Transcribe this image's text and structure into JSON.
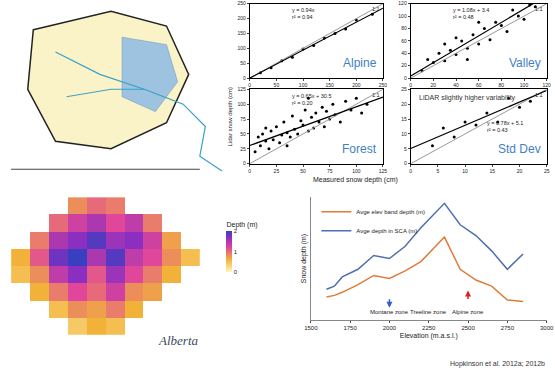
{
  "figure": {
    "y_label": "Lidar snow depth (cm)",
    "x_label": "Measured snow depth (cm)",
    "citation": "Hopkinson et al. 2012a; 2012b",
    "logo": "Alberta"
  },
  "chart_data": [
    {
      "type": "scatter",
      "title": "Alpine",
      "annotations": [
        "y = 0.94x",
        "r² = 0.94"
      ],
      "reference_label": "1:1",
      "fit": {
        "slope": 0.94,
        "intercept": 0
      },
      "color": "#000000",
      "grid": false,
      "x": [
        20,
        40,
        60,
        80,
        100,
        120,
        140,
        160,
        180,
        200,
        230
      ],
      "y": [
        18,
        35,
        58,
        70,
        98,
        110,
        135,
        150,
        165,
        195,
        215
      ],
      "xlim": [
        0,
        250
      ],
      "ylim": [
        0,
        250
      ],
      "xticks": [
        0,
        50,
        100,
        150,
        200,
        250
      ],
      "yticks": [
        0,
        50,
        100,
        150,
        200,
        250
      ]
    },
    {
      "type": "scatter",
      "title": "Valley",
      "annotations": [
        "y = 1.08x + 3.4",
        "r² = 0.48"
      ],
      "reference_label": "1:1",
      "fit": {
        "slope": 1.08,
        "intercept": 3.4
      },
      "color": "#000000",
      "grid": false,
      "x": [
        10,
        15,
        20,
        25,
        30,
        35,
        40,
        45,
        50,
        55,
        60,
        65,
        70,
        75,
        80,
        85,
        90,
        95,
        100,
        105,
        110,
        30,
        50,
        60,
        40
      ],
      "y": [
        12,
        30,
        25,
        40,
        28,
        45,
        38,
        60,
        48,
        70,
        55,
        80,
        62,
        90,
        85,
        75,
        110,
        100,
        95,
        118,
        115,
        55,
        30,
        90,
        65
      ],
      "xlim": [
        0,
        120
      ],
      "ylim": [
        0,
        120
      ],
      "xticks": [
        0,
        20,
        40,
        60,
        80,
        100,
        120
      ],
      "yticks": [
        0,
        20,
        40,
        60,
        80,
        100,
        120
      ]
    },
    {
      "type": "scatter",
      "title": "Forest",
      "annotations": [
        "y = 0.65x + 30.5",
        "r² = 0.20"
      ],
      "reference_label": "1:1",
      "fit": {
        "slope": 0.65,
        "intercept": 30.5
      },
      "color": "#000000",
      "grid": false,
      "x": [
        5,
        8,
        10,
        12,
        15,
        18,
        20,
        22,
        25,
        28,
        30,
        32,
        35,
        38,
        40,
        42,
        45,
        48,
        50,
        52,
        55,
        58,
        60,
        62,
        65,
        68,
        70,
        72,
        75,
        78,
        80,
        85,
        90,
        95,
        100,
        105,
        110,
        15,
        35,
        55
      ],
      "y": [
        20,
        45,
        30,
        50,
        38,
        25,
        55,
        40,
        62,
        35,
        48,
        70,
        52,
        45,
        80,
        58,
        50,
        72,
        65,
        90,
        55,
        78,
        60,
        85,
        70,
        95,
        62,
        88,
        75,
        100,
        82,
        70,
        105,
        90,
        110,
        85,
        100,
        60,
        30,
        110
      ],
      "xlim": [
        0,
        125
      ],
      "ylim": [
        0,
        125
      ],
      "xticks": [
        0,
        25,
        50,
        75,
        100,
        125
      ],
      "yticks": [
        0,
        25,
        50,
        75,
        100,
        125
      ]
    },
    {
      "type": "scatter",
      "title": "Std Dev",
      "annotations": [
        "y = 0.78x + 5.1",
        "r² = 0.43"
      ],
      "note": "LiDAR slightly higher variability",
      "reference_label": "1:1",
      "fit": {
        "slope": 0.78,
        "intercept": 5.1
      },
      "color": "#000000",
      "grid": false,
      "x": [
        4,
        6,
        8,
        10,
        12,
        14,
        16,
        18,
        20,
        22
      ],
      "y": [
        6,
        12,
        9,
        14,
        13,
        17,
        14,
        22,
        19,
        21
      ],
      "xlim": [
        0,
        25
      ],
      "ylim": [
        0,
        25
      ],
      "xticks": [
        0,
        5,
        10,
        15,
        20,
        25
      ],
      "yticks": [
        0,
        5,
        10,
        15,
        20,
        25
      ]
    },
    {
      "type": "heatmap",
      "tick_labels": false,
      "z": [
        [
          null,
          null,
          null,
          0.4,
          0.6,
          0.5,
          null,
          null,
          null,
          null
        ],
        [
          null,
          null,
          0.5,
          0.8,
          0.7,
          0.9,
          0.6,
          null,
          null,
          null
        ],
        [
          null,
          0.6,
          0.9,
          1.2,
          1.0,
          1.3,
          0.8,
          0.7,
          null,
          null
        ],
        [
          0.5,
          0.8,
          1.4,
          1.7,
          1.1,
          1.6,
          1.2,
          0.9,
          0.6,
          null
        ],
        [
          0.6,
          1.1,
          1.8,
          2.0,
          1.5,
          1.9,
          1.4,
          1.2,
          0.8,
          0.5
        ],
        [
          null,
          0.9,
          1.5,
          1.7,
          1.9,
          1.6,
          1.7,
          1.3,
          0.7,
          null
        ],
        [
          null,
          null,
          1.0,
          1.3,
          1.5,
          1.2,
          1.4,
          0.9,
          null,
          null
        ],
        [
          null,
          null,
          null,
          0.8,
          1.0,
          0.9,
          null,
          null,
          null,
          null
        ]
      ],
      "colorbar": {
        "title": "Depth (m)",
        "range": [
          0,
          2
        ],
        "ticks": [
          0,
          1,
          2
        ]
      }
    },
    {
      "type": "line",
      "xlabel": "Elevation (m.a.s.l.)",
      "ylabel": "Snow depth (m)",
      "legend": "top left",
      "tick_labels": "x",
      "grid": false,
      "x": [
        1600,
        1650,
        1700,
        1800,
        1900,
        2000,
        2100,
        2200,
        2350,
        2450,
        2550,
        2650,
        2750,
        2850
      ],
      "series": [
        {
          "name": "Avge elev band depth (m)",
          "color": "#e07b39",
          "values": [
            0.15,
            0.16,
            0.18,
            0.23,
            0.29,
            0.27,
            0.32,
            0.38,
            0.54,
            0.33,
            0.26,
            0.22,
            0.13,
            0.12
          ]
        },
        {
          "name": "Avge depth in SCA (m)",
          "color": "#4f6fad",
          "values": [
            0.2,
            0.22,
            0.28,
            0.33,
            0.42,
            0.4,
            0.48,
            0.6,
            0.76,
            0.62,
            0.55,
            0.45,
            0.33,
            0.43
          ]
        }
      ],
      "zones": [
        {
          "label": "Montane zone",
          "x": 2000,
          "color": "#2f5fbf"
        },
        {
          "label": "Treeline zone",
          "x": 2250
        },
        {
          "label": "Alpine zone",
          "x": 2500,
          "color": "#e02020"
        }
      ],
      "xlim": [
        1500,
        3000
      ],
      "ylim": [
        0,
        0.8
      ],
      "xticks": [
        1500,
        1750,
        2000,
        2250,
        2500,
        2750,
        3000
      ]
    }
  ]
}
